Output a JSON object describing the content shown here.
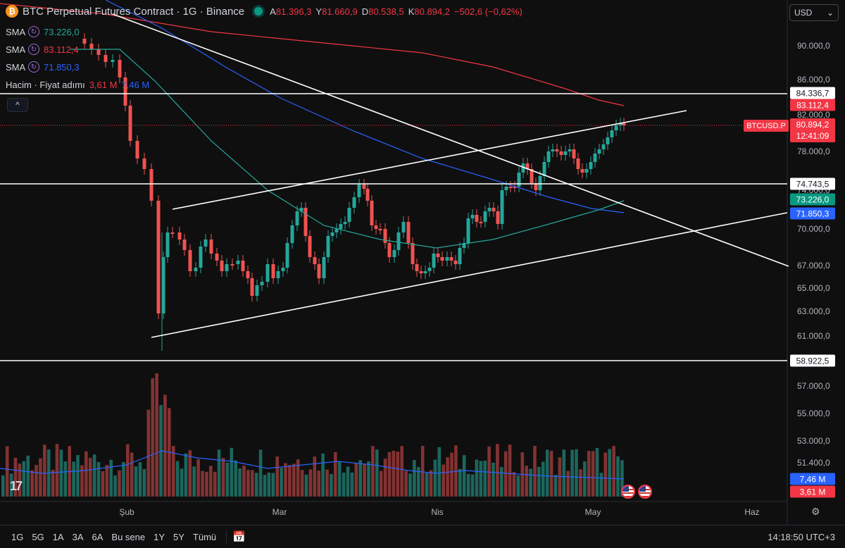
{
  "header": {
    "title": "BTC Perpetual Futures Contract · 1G · Binance",
    "ohlc": [
      {
        "key": "A",
        "value": "81.396,3"
      },
      {
        "key": "Y",
        "value": "81.660,9"
      },
      {
        "key": "D",
        "value": "80.538,5"
      },
      {
        "key": "K",
        "value": "80.894,2"
      },
      {
        "key": "",
        "value": "−502,6 (−0,62%)"
      }
    ]
  },
  "indicators": [
    {
      "label": "SMA",
      "value": "73.226,0",
      "color": "#26a69a"
    },
    {
      "label": "SMA",
      "value": "83.112,4",
      "color": "#f23645"
    },
    {
      "label": "SMA",
      "value": "71.850,3",
      "color": "#2962ff"
    }
  ],
  "volume": {
    "label": "Hacim · Fiyat adımı",
    "v1": "3,61 M",
    "v2": "7,46 M"
  },
  "currency": "USD",
  "price_axis": [
    "90.000,0",
    "86.000,0",
    "82.000,0",
    "78.000,0",
    "74.000,0",
    "70.000,0",
    "67.000,0",
    "65.000,0",
    "63.000,0",
    "61.000,0",
    "57.000,0",
    "55.000,0",
    "53.000,0",
    "51.400,0"
  ],
  "tags": {
    "hline1": "84.336,7",
    "sma_red": "83.112,4",
    "last_price": "80.894,2",
    "countdown": "12:41:09",
    "symbol": "BTCUSD.P",
    "hline2": "74.743,5",
    "sma_green": "73.226,0",
    "sma_blue": "71.850,3",
    "hline3": "58.922,5",
    "vol_blue": "7,46 M",
    "vol_red": "3,61 M"
  },
  "time_axis": [
    "Şub",
    "Mar",
    "Nis",
    "May",
    "Haz"
  ],
  "ranges": [
    "1G",
    "5G",
    "1A",
    "3A",
    "6A",
    "Bu sene",
    "1Y",
    "5Y",
    "Tümü"
  ],
  "clock": "14:18:50 UTC+3",
  "colors": {
    "up": "#26a69a",
    "down": "#ef5350",
    "bg": "#0f0f0f"
  }
}
